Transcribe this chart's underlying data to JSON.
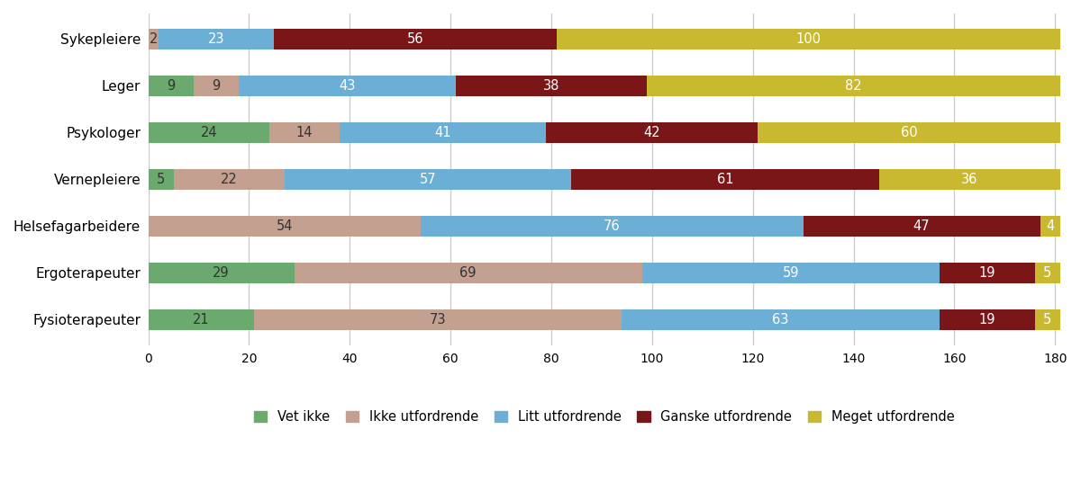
{
  "categories": [
    "Sykepleiere",
    "Leger",
    "Psykologer",
    "Vernepleiere",
    "Helsefagarbeidere",
    "Ergoterapeuter",
    "Fysioterapeuter"
  ],
  "series": {
    "Vet ikke": [
      0,
      9,
      24,
      5,
      0,
      29,
      21
    ],
    "Ikke utfordrende": [
      2,
      9,
      14,
      22,
      54,
      69,
      73
    ],
    "Litt utfordrende": [
      23,
      43,
      41,
      57,
      76,
      59,
      63
    ],
    "Ganske utfordrende": [
      56,
      38,
      42,
      61,
      47,
      19,
      19
    ],
    "Meget utfordrende": [
      100,
      82,
      60,
      36,
      4,
      5,
      5
    ]
  },
  "colors": {
    "Vet ikke": "#6aaa6e",
    "Ikke utfordrende": "#c4a090",
    "Litt utfordrende": "#6baed6",
    "Ganske utfordrende": "#7a1518",
    "Meget utfordrende": "#c8b930"
  },
  "xlim": [
    0,
    181
  ],
  "xticks": [
    0,
    20,
    40,
    60,
    80,
    100,
    120,
    140,
    160,
    180
  ],
  "figsize": [
    12.0,
    5.57
  ],
  "dpi": 100,
  "bar_height": 0.45,
  "background_color": "#ffffff",
  "label_color_dark": "#333333",
  "label_color_light": "white",
  "label_fontsize": 10.5,
  "ylabel_fontsize": 11,
  "legend_fontsize": 10.5,
  "grid_color": "#cccccc",
  "tick_fontsize": 10
}
